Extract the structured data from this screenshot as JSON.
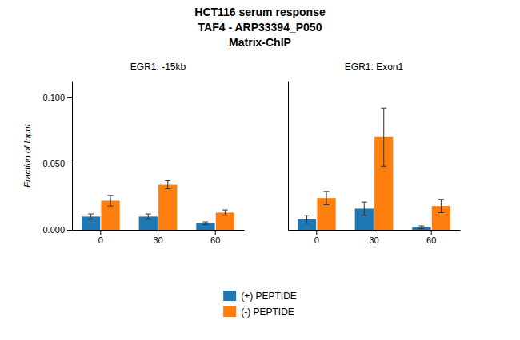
{
  "title": [
    "HCT116 serum response",
    "TAF4 - ARP33394_P050",
    "Matrix-ChIP"
  ],
  "chart_data": [
    {
      "type": "bar",
      "title": "EGR1: -15kb",
      "ylabel": "Fraction of Input",
      "categories": [
        "0",
        "30",
        "60"
      ],
      "series": [
        {
          "name": "(+) PEPTIDE",
          "values": [
            0.01,
            0.01,
            0.005
          ],
          "errors": [
            0.002,
            0.002,
            0.001
          ]
        },
        {
          "name": "(-) PEPTIDE",
          "values": [
            0.022,
            0.034,
            0.013
          ],
          "errors": [
            0.004,
            0.003,
            0.002
          ]
        }
      ],
      "ylim": [
        0,
        0.112
      ],
      "yticks": [
        {
          "value": 0,
          "label": "0.000"
        },
        {
          "value": 0.05,
          "label": "0.050"
        },
        {
          "value": 0.1,
          "label": "0.100"
        }
      ],
      "legend": "bottom"
    },
    {
      "type": "bar",
      "title": "EGR1: Exon1",
      "categories": [
        "0",
        "30",
        "60"
      ],
      "series": [
        {
          "name": "(+) PEPTIDE",
          "values": [
            0.008,
            0.016,
            0.002
          ],
          "errors": [
            0.003,
            0.005,
            0.001
          ]
        },
        {
          "name": "(-) PEPTIDE",
          "values": [
            0.024,
            0.07,
            0.018
          ],
          "errors": [
            0.005,
            0.022,
            0.005
          ]
        }
      ],
      "ylim": [
        0,
        0.112
      ],
      "tick_labels": "x"
    }
  ]
}
